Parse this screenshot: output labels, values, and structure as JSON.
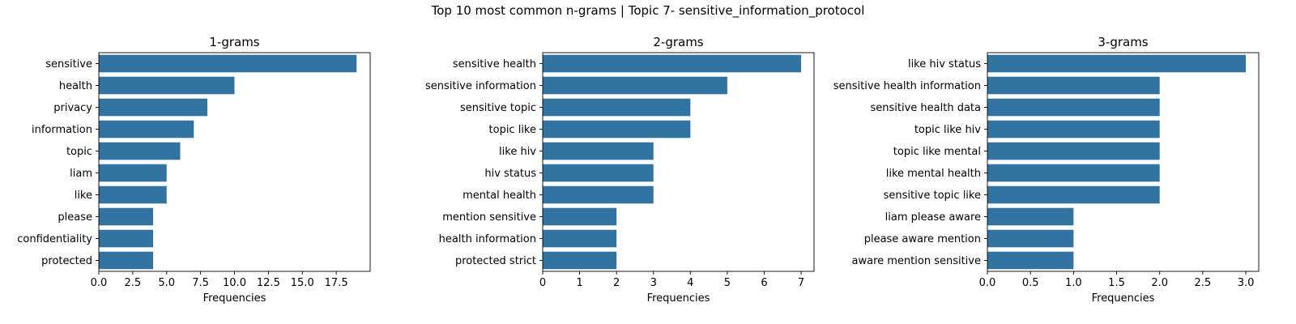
{
  "figure_title": "Top 10 most common n-grams | Topic 7- sensitive_information_protocol",
  "bar_color": "#3274a1",
  "chart_data": [
    {
      "type": "bar",
      "orientation": "horizontal",
      "title": "1-grams",
      "xlabel": "Frequencies",
      "ylabel": "",
      "categories": [
        "sensitive",
        "health",
        "privacy",
        "information",
        "topic",
        "liam",
        "like",
        "please",
        "confidentiality",
        "protected"
      ],
      "values": [
        19,
        10,
        8,
        7,
        6,
        5,
        5,
        4,
        4,
        4
      ],
      "xlim": [
        0,
        20
      ],
      "xticks": [
        0,
        2.5,
        5,
        7.5,
        10,
        12.5,
        15,
        17.5
      ],
      "xtick_labels": [
        "0.0",
        "2.5",
        "5.0",
        "7.5",
        "10.0",
        "12.5",
        "15.0",
        "17.5"
      ]
    },
    {
      "type": "bar",
      "orientation": "horizontal",
      "title": "2-grams",
      "xlabel": "Frequencies",
      "ylabel": "",
      "categories": [
        "sensitive health",
        "sensitive information",
        "sensitive topic",
        "topic like",
        "like hiv",
        "hiv status",
        "mental health",
        "mention sensitive",
        "health information",
        "protected strict"
      ],
      "values": [
        7,
        5,
        4,
        4,
        3,
        3,
        3,
        2,
        2,
        2
      ],
      "xlim": [
        0,
        7.35
      ],
      "xticks": [
        0,
        1,
        2,
        3,
        4,
        5,
        6,
        7
      ],
      "xtick_labels": [
        "0",
        "1",
        "2",
        "3",
        "4",
        "5",
        "6",
        "7"
      ]
    },
    {
      "type": "bar",
      "orientation": "horizontal",
      "title": "3-grams",
      "xlabel": "Frequencies",
      "ylabel": "",
      "categories": [
        "like hiv status",
        "sensitive health information",
        "sensitive health data",
        "topic like hiv",
        "topic like mental",
        "like mental health",
        "sensitive topic like",
        "liam please aware",
        "please aware mention",
        "aware mention sensitive"
      ],
      "values": [
        3,
        2,
        2,
        2,
        2,
        2,
        2,
        1,
        1,
        1
      ],
      "xlim": [
        0,
        3.15
      ],
      "xticks": [
        0,
        0.5,
        1,
        1.5,
        2,
        2.5,
        3
      ],
      "xtick_labels": [
        "0.0",
        "0.5",
        "1.0",
        "1.5",
        "2.0",
        "2.5",
        "3.0"
      ]
    }
  ]
}
